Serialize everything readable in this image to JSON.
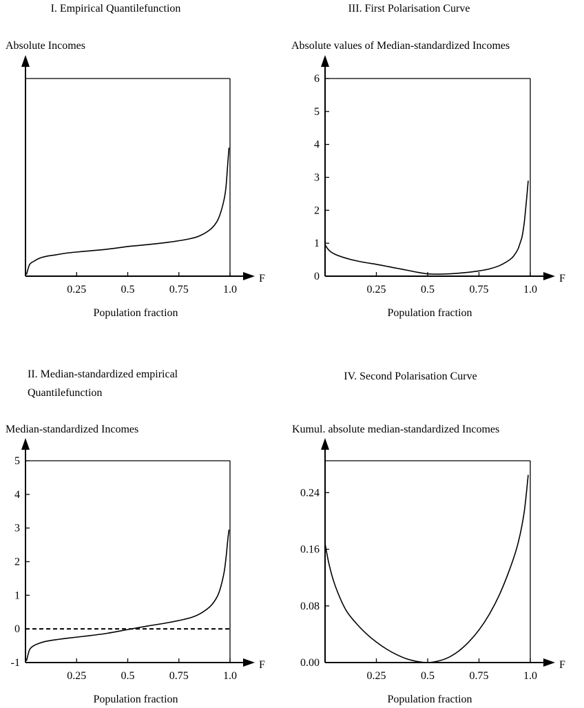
{
  "chart_data": [
    {
      "id": "quantile",
      "type": "line",
      "title": "I. Empirical Quantilefunction",
      "ylabel": "Absolute Incomes",
      "xlabel": "Population fraction",
      "axis_var": "F",
      "xlim": [
        0,
        1
      ],
      "ylim": [
        0,
        6
      ],
      "x_ticks": [
        {
          "v": 0.25,
          "label": "0.25"
        },
        {
          "v": 0.5,
          "label": "0.5"
        },
        {
          "v": 0.75,
          "label": "0.75"
        },
        {
          "v": 1.0,
          "label": "1.0"
        }
      ],
      "y_ticks": [],
      "frame_top": 6,
      "series": [
        {
          "x": [
            0.005,
            0.02,
            0.04,
            0.07,
            0.1,
            0.15,
            0.2,
            0.3,
            0.4,
            0.5,
            0.6,
            0.7,
            0.8,
            0.85,
            0.9,
            0.93,
            0.95,
            0.97,
            0.98,
            0.99,
            0.995
          ],
          "y": [
            0.05,
            0.35,
            0.45,
            0.55,
            0.6,
            0.65,
            0.7,
            0.76,
            0.82,
            0.9,
            0.96,
            1.03,
            1.13,
            1.22,
            1.4,
            1.6,
            1.85,
            2.3,
            2.7,
            3.5,
            3.9
          ]
        }
      ]
    },
    {
      "id": "first-polarisation",
      "type": "line",
      "title": "III. First Polarisation Curve",
      "ylabel": "Absolute values of Median-standardized Incomes",
      "xlabel": "Population fraction",
      "axis_var": "F",
      "xlim": [
        0,
        1
      ],
      "ylim": [
        0,
        6
      ],
      "x_ticks": [
        {
          "v": 0.25,
          "label": "0.25"
        },
        {
          "v": 0.5,
          "label": "0.5"
        },
        {
          "v": 0.75,
          "label": "0.75"
        },
        {
          "v": 1.0,
          "label": "1.0"
        }
      ],
      "y_ticks": [
        {
          "v": 0,
          "label": "0"
        },
        {
          "v": 1,
          "label": "1"
        },
        {
          "v": 2,
          "label": "2"
        },
        {
          "v": 3,
          "label": "3"
        },
        {
          "v": 4,
          "label": "4"
        },
        {
          "v": 5,
          "label": "5"
        },
        {
          "v": 6,
          "label": "6"
        }
      ],
      "frame_top": 6,
      "series": [
        {
          "x": [
            0.0,
            0.02,
            0.05,
            0.1,
            0.15,
            0.2,
            0.25,
            0.3,
            0.35,
            0.4,
            0.45,
            0.5,
            0.55,
            0.6,
            0.65,
            0.7,
            0.75,
            0.8,
            0.85,
            0.9,
            0.92,
            0.94,
            0.95,
            0.96,
            0.97,
            0.98,
            0.99
          ],
          "y": [
            0.95,
            0.78,
            0.66,
            0.55,
            0.47,
            0.41,
            0.36,
            0.3,
            0.24,
            0.18,
            0.12,
            0.07,
            0.06,
            0.07,
            0.09,
            0.12,
            0.16,
            0.22,
            0.32,
            0.5,
            0.62,
            0.82,
            1.0,
            1.2,
            1.6,
            2.2,
            2.9
          ]
        }
      ]
    },
    {
      "id": "median-quantile",
      "type": "line",
      "title": "II. Median-standardized empirical Quantilefunction",
      "title_lines": [
        "II. Median-standardized empirical",
        "Quantilefunction"
      ],
      "ylabel": "Median-standardized Incomes",
      "xlabel": "Population fraction",
      "axis_var": "F",
      "xlim": [
        0,
        1
      ],
      "ylim": [
        -1,
        5
      ],
      "x_ticks": [
        {
          "v": 0.25,
          "label": "0.25"
        },
        {
          "v": 0.5,
          "label": "0.5"
        },
        {
          "v": 0.75,
          "label": "0.75"
        },
        {
          "v": 1.0,
          "label": "1.0"
        }
      ],
      "y_ticks": [
        {
          "v": -1,
          "label": "-1"
        },
        {
          "v": 0,
          "label": "0"
        },
        {
          "v": 1,
          "label": "1"
        },
        {
          "v": 2,
          "label": "2"
        },
        {
          "v": 3,
          "label": "3"
        },
        {
          "v": 4,
          "label": "4"
        },
        {
          "v": 5,
          "label": "5"
        }
      ],
      "frame_top": 5,
      "reference_line": 0,
      "series": [
        {
          "x": [
            0.005,
            0.02,
            0.04,
            0.07,
            0.1,
            0.15,
            0.2,
            0.3,
            0.4,
            0.5,
            0.6,
            0.7,
            0.8,
            0.85,
            0.9,
            0.93,
            0.95,
            0.97,
            0.98,
            0.99,
            0.995
          ],
          "y": [
            -0.95,
            -0.62,
            -0.5,
            -0.42,
            -0.37,
            -0.32,
            -0.28,
            -0.21,
            -0.13,
            -0.02,
            0.09,
            0.19,
            0.32,
            0.44,
            0.65,
            0.88,
            1.15,
            1.65,
            2.1,
            2.7,
            2.95
          ]
        }
      ]
    },
    {
      "id": "second-polarisation",
      "type": "line",
      "title": "IV. Second Polarisation Curve",
      "ylabel": "Kumul. absolute median-standardized Incomes",
      "xlabel": "Population fraction",
      "axis_var": "F",
      "xlim": [
        0,
        1
      ],
      "ylim": [
        0,
        0.285
      ],
      "x_ticks": [
        {
          "v": 0.25,
          "label": "0.25"
        },
        {
          "v": 0.5,
          "label": "0.5"
        },
        {
          "v": 0.75,
          "label": "0.75"
        },
        {
          "v": 1.0,
          "label": "1.0"
        }
      ],
      "y_ticks": [
        {
          "v": 0.0,
          "label": "0.00"
        },
        {
          "v": 0.08,
          "label": "0.08"
        },
        {
          "v": 0.16,
          "label": "0.16"
        },
        {
          "v": 0.24,
          "label": "0.24"
        }
      ],
      "frame_top": 0.285,
      "series": [
        {
          "x": [
            0.0,
            0.02,
            0.05,
            0.1,
            0.15,
            0.2,
            0.25,
            0.3,
            0.35,
            0.4,
            0.45,
            0.5,
            0.55,
            0.6,
            0.65,
            0.7,
            0.75,
            0.8,
            0.85,
            0.9,
            0.94,
            0.97,
            0.99
          ],
          "y": [
            0.168,
            0.138,
            0.108,
            0.075,
            0.056,
            0.041,
            0.029,
            0.019,
            0.011,
            0.005,
            0.0015,
            0.0,
            0.002,
            0.007,
            0.016,
            0.029,
            0.046,
            0.068,
            0.096,
            0.132,
            0.168,
            0.212,
            0.265
          ]
        }
      ]
    }
  ]
}
